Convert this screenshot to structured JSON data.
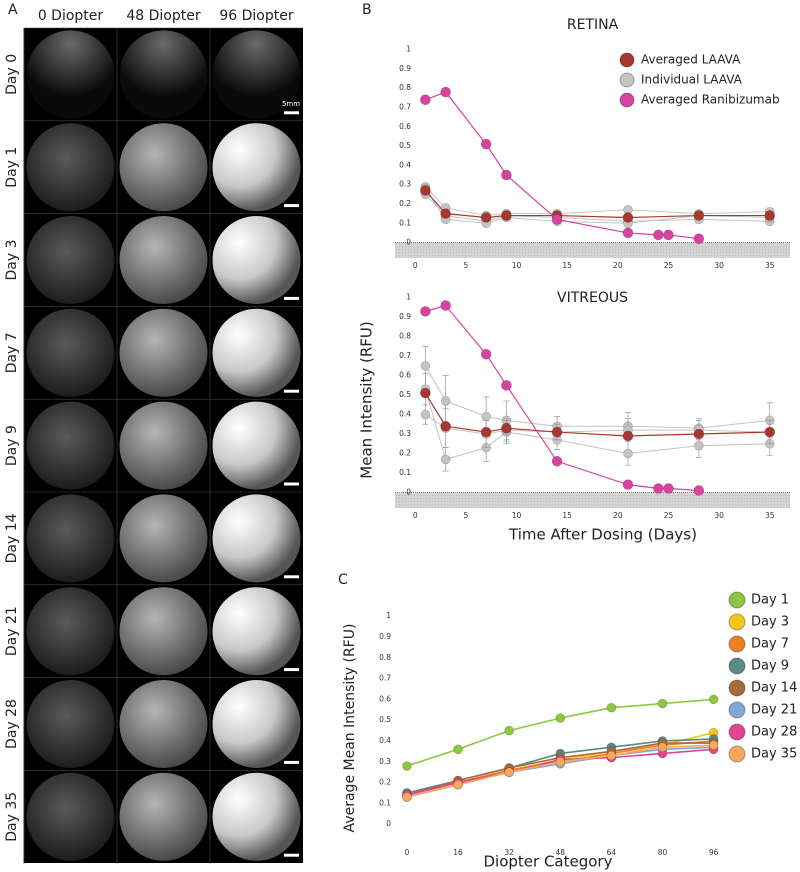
{
  "panel_labels": [
    "A",
    "B",
    "C"
  ],
  "image_grid": {
    "columns": [
      "0 Diopter",
      "48 Diopter",
      "96 Diopter"
    ],
    "rows": [
      "Day 0",
      "Day 1",
      "Day 3",
      "Day 7",
      "Day 9",
      "Day 14",
      "Day 21",
      "Day 28",
      "Day 35"
    ],
    "scale_bar": "5mm"
  },
  "panel_b": {
    "ylabel": "Mean Intensity (RFU)",
    "xlabel": "Time After Dosing (Days)"
  },
  "chart_data": [
    {
      "type": "line",
      "title": "RETINA",
      "xlim": [
        -2,
        37
      ],
      "ylim": [
        -0.08,
        1.05
      ],
      "xticks": [
        0,
        5,
        10,
        15,
        20,
        25,
        30,
        35
      ],
      "yticks": [
        0,
        0.1,
        0.2,
        0.3,
        0.4,
        0.5,
        0.6,
        0.7,
        0.8,
        0.9,
        1
      ],
      "legend": "upper right",
      "shade_below_zero": true,
      "series": [
        {
          "name": "Averaged LAAVA",
          "color": "#a8372f",
          "x": [
            1,
            3,
            7,
            9,
            14,
            21,
            28,
            35
          ],
          "values": [
            0.27,
            0.15,
            0.13,
            0.14,
            0.14,
            0.13,
            0.14,
            0.14
          ]
        },
        {
          "name": "Individual LAAVA",
          "color": "#c4c4c4",
          "x": [
            1,
            3,
            7,
            9,
            14,
            21,
            28,
            35
          ],
          "replicates": [
            [
              0.29,
              0.18,
              0.14,
              0.15,
              0.15,
              0.17,
              0.15,
              0.16
            ],
            [
              0.25,
              0.14,
              0.11,
              0.14,
              0.13,
              0.11,
              0.12,
              0.11
            ],
            [
              0.28,
              0.12,
              0.1,
              0.13,
              0.11,
              0.1,
              0.14,
              0.13
            ]
          ]
        },
        {
          "name": "Averaged Ranibizumab",
          "color": "#d9439f",
          "x": [
            1,
            3,
            7,
            9,
            14,
            21,
            24,
            25,
            28
          ],
          "values": [
            0.74,
            0.78,
            0.51,
            0.35,
            0.12,
            0.05,
            0.04,
            0.04,
            0.02
          ]
        }
      ]
    },
    {
      "type": "line",
      "title": "VITREOUS",
      "xlim": [
        -2,
        37
      ],
      "ylim": [
        -0.08,
        1.05
      ],
      "xticks": [
        0,
        5,
        10,
        15,
        20,
        25,
        30,
        35
      ],
      "yticks": [
        0,
        0.1,
        0.2,
        0.3,
        0.4,
        0.5,
        0.6,
        0.7,
        0.8,
        0.9,
        1
      ],
      "shade_below_zero": true,
      "series": [
        {
          "name": "Averaged LAAVA",
          "color": "#a8372f",
          "x": [
            1,
            3,
            7,
            9,
            14,
            21,
            28,
            35
          ],
          "values": [
            0.51,
            0.34,
            0.31,
            0.33,
            0.31,
            0.29,
            0.3,
            0.31
          ]
        },
        {
          "name": "Individual LAAVA",
          "color": "#c4c4c4",
          "x": [
            1,
            3,
            7,
            9,
            14,
            21,
            28,
            35
          ],
          "replicates": [
            [
              0.65,
              0.47,
              0.39,
              0.37,
              0.34,
              0.34,
              0.33,
              0.37
            ],
            [
              0.53,
              0.17,
              0.23,
              0.31,
              0.27,
              0.2,
              0.24,
              0.25
            ],
            [
              0.4,
              0.33,
              0.3,
              0.32,
              0.31,
              0.32,
              0.32,
              0.31
            ]
          ],
          "errors": [
            [
              0.1,
              0.13,
              0.1,
              0.1,
              0.05,
              0.07,
              0.05,
              0.09
            ],
            [
              0.08,
              0.06,
              0.07,
              0.06,
              0.05,
              0.06,
              0.06,
              0.06
            ],
            [
              0.05,
              0.1,
              0.07,
              0.06,
              0.04,
              0.06,
              0.05,
              0.06
            ]
          ]
        },
        {
          "name": "Averaged Ranibizumab",
          "color": "#d9439f",
          "x": [
            1,
            3,
            7,
            9,
            14,
            21,
            24,
            25,
            28
          ],
          "values": [
            0.93,
            0.96,
            0.71,
            0.55,
            0.16,
            0.04,
            0.02,
            0.02,
            0.01
          ]
        }
      ]
    },
    {
      "type": "line",
      "xlabel": "Diopter Category",
      "ylabel": "Average Mean Intensity (RFU)",
      "x": [
        0,
        16,
        32,
        48,
        64,
        80,
        96
      ],
      "xlim": [
        -10,
        98
      ],
      "ylim": [
        -0.1,
        1.02
      ],
      "xticks": [
        0,
        16,
        32,
        48,
        64,
        80,
        96
      ],
      "yticks": [
        0,
        0.1,
        0.2,
        0.3,
        0.4,
        0.5,
        0.6,
        0.7,
        0.8,
        0.9,
        1
      ],
      "legend": "outside right",
      "series": [
        {
          "name": "Day 1",
          "color": "#8dc63f",
          "values": [
            0.28,
            0.36,
            0.45,
            0.51,
            0.56,
            0.58,
            0.6
          ]
        },
        {
          "name": "Day 3",
          "color": "#f5c518",
          "values": [
            0.15,
            0.2,
            0.26,
            0.31,
            0.35,
            0.38,
            0.44
          ]
        },
        {
          "name": "Day 7",
          "color": "#f07f22",
          "values": [
            0.14,
            0.2,
            0.26,
            0.3,
            0.34,
            0.38,
            0.4
          ]
        },
        {
          "name": "Day 9",
          "color": "#5a8a82",
          "values": [
            0.15,
            0.21,
            0.27,
            0.34,
            0.37,
            0.4,
            0.41
          ]
        },
        {
          "name": "Day 14",
          "color": "#a86b3c",
          "values": [
            0.14,
            0.21,
            0.27,
            0.32,
            0.35,
            0.39,
            0.39
          ]
        },
        {
          "name": "Day 21",
          "color": "#7fa9d1",
          "values": [
            0.13,
            0.19,
            0.25,
            0.29,
            0.33,
            0.36,
            0.37
          ]
        },
        {
          "name": "Day 28",
          "color": "#e0468f",
          "values": [
            0.14,
            0.2,
            0.25,
            0.31,
            0.32,
            0.34,
            0.36
          ]
        },
        {
          "name": "Day 35",
          "color": "#f9a85b",
          "values": [
            0.13,
            0.19,
            0.25,
            0.3,
            0.33,
            0.37,
            0.38
          ]
        }
      ]
    }
  ]
}
